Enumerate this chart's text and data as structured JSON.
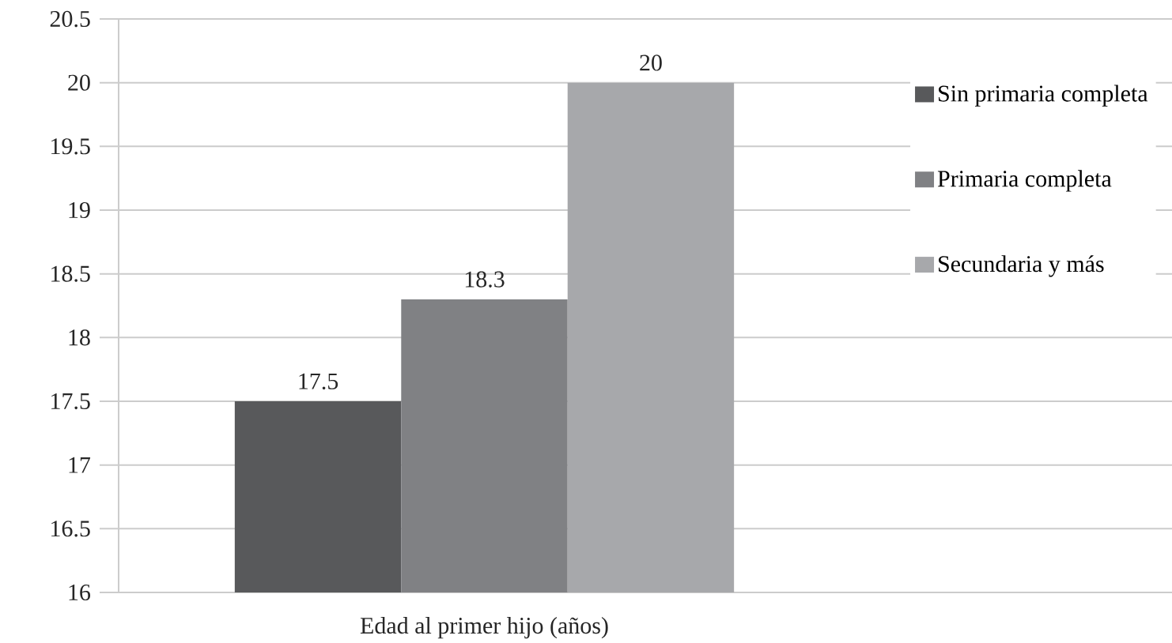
{
  "chart_data": {
    "type": "bar",
    "categories": [
      "Edad al primer hijo (años)"
    ],
    "series": [
      {
        "name": "Sin primaria completa",
        "color": "#58595b",
        "values": [
          17.5
        ]
      },
      {
        "name": "Primaria completa",
        "color": "#808184",
        "values": [
          18.3
        ]
      },
      {
        "name": "Secundaria y más",
        "color": "#a7a8ab",
        "values": [
          20
        ]
      }
    ],
    "ylim": [
      16,
      20.5
    ],
    "yticks": [
      16,
      16.5,
      17,
      17.5,
      18,
      18.5,
      19,
      19.5,
      20,
      20.5
    ],
    "grid": "y",
    "legend": "right",
    "data_labels": true
  }
}
